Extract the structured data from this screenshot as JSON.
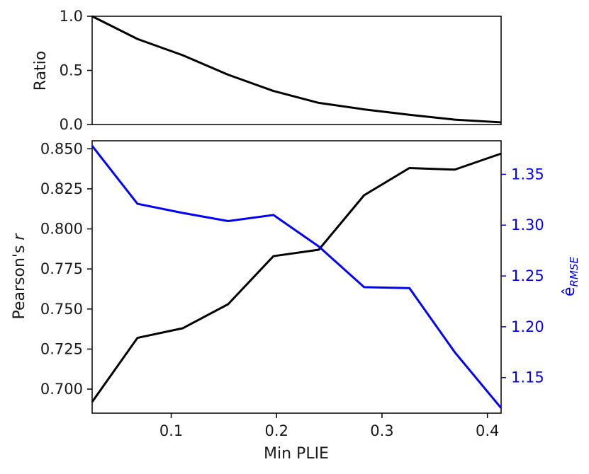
{
  "colors": {
    "ratio": "#000000",
    "pearson": "#000000",
    "rmse": "#0000ff",
    "axis_blue": "#0000ff"
  },
  "chart_data": [
    {
      "type": "line",
      "xlim": [
        0.025,
        0.413
      ],
      "ylim": [
        0,
        1
      ],
      "xlabel": "",
      "ylabel": "Ratio",
      "yticks": [
        "0.0",
        "0.5",
        "1.0"
      ],
      "grid": false,
      "series": [
        {
          "x": [
            0.025,
            0.068,
            0.111,
            0.154,
            0.197,
            0.24,
            0.283,
            0.326,
            0.369,
            0.413
          ],
          "values": [
            1.0,
            0.79,
            0.64,
            0.46,
            0.31,
            0.2,
            0.14,
            0.09,
            0.045,
            0.02
          ]
        }
      ]
    },
    {
      "type": "line",
      "xlim": [
        0.025,
        0.413
      ],
      "xlabel": "Min PLIE",
      "xticks": [
        "0.1",
        "0.2",
        "0.3",
        "0.4"
      ],
      "ylabel": "Pearson's r",
      "ylim": [
        0.685,
        0.855
      ],
      "yticks": [
        "0.700",
        "0.725",
        "0.750",
        "0.775",
        "0.800",
        "0.825",
        "0.850"
      ],
      "y2label": "ê_RMSE",
      "y2label_main": "ê",
      "y2label_sub": "RMSE",
      "y2lim": [
        1.115,
        1.383
      ],
      "y2ticks": [
        "1.15",
        "1.20",
        "1.25",
        "1.30",
        "1.35"
      ],
      "grid": false,
      "series": [
        {
          "axis": "left",
          "x": [
            0.025,
            0.068,
            0.111,
            0.154,
            0.197,
            0.24,
            0.283,
            0.326,
            0.369,
            0.413
          ],
          "values": [
            0.692,
            0.732,
            0.738,
            0.753,
            0.783,
            0.787,
            0.821,
            0.838,
            0.837,
            0.847
          ]
        },
        {
          "axis": "right",
          "x": [
            0.025,
            0.068,
            0.111,
            0.154,
            0.197,
            0.24,
            0.283,
            0.326,
            0.369,
            0.413
          ],
          "values": [
            1.378,
            1.321,
            1.312,
            1.304,
            1.31,
            1.279,
            1.239,
            1.238,
            1.175,
            1.12
          ]
        }
      ]
    }
  ]
}
